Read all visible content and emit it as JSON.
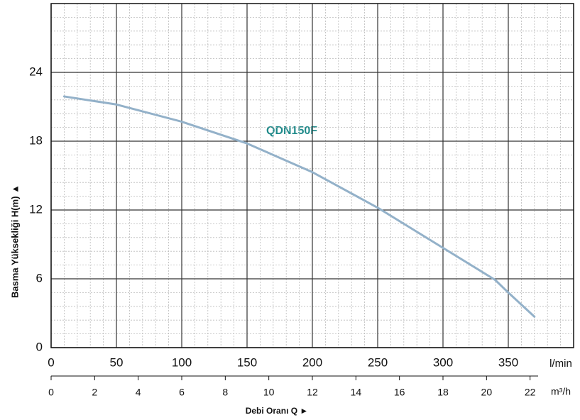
{
  "chart_data": {
    "type": "line",
    "x": [
      10,
      50,
      100,
      150,
      200,
      250,
      300,
      340,
      350,
      370
    ],
    "series": [
      {
        "name": "QDN150F",
        "color": "#93b1c9",
        "values": [
          21.9,
          21.2,
          19.7,
          17.8,
          15.3,
          12.2,
          8.7,
          5.9,
          4.8,
          2.7
        ]
      }
    ],
    "xlim": [
      0,
      400
    ],
    "xticks": [
      0,
      50,
      100,
      150,
      200,
      250,
      300,
      350
    ],
    "ylim": [
      0,
      30
    ],
    "yticks": [
      0,
      6,
      12,
      18,
      24
    ],
    "x2lim": [
      0,
      24
    ],
    "x2ticks": [
      0,
      2,
      4,
      6,
      8,
      10,
      12,
      14,
      16,
      18,
      20,
      22
    ],
    "x_unit": "l/min",
    "x2_unit": "m³/h",
    "xlabel": "Debi Oranı Q ►",
    "ylabel": "Basma Yüksekliği H(m) ▲",
    "annotation": "QDN150F",
    "grid": true,
    "minor_grid": true
  }
}
